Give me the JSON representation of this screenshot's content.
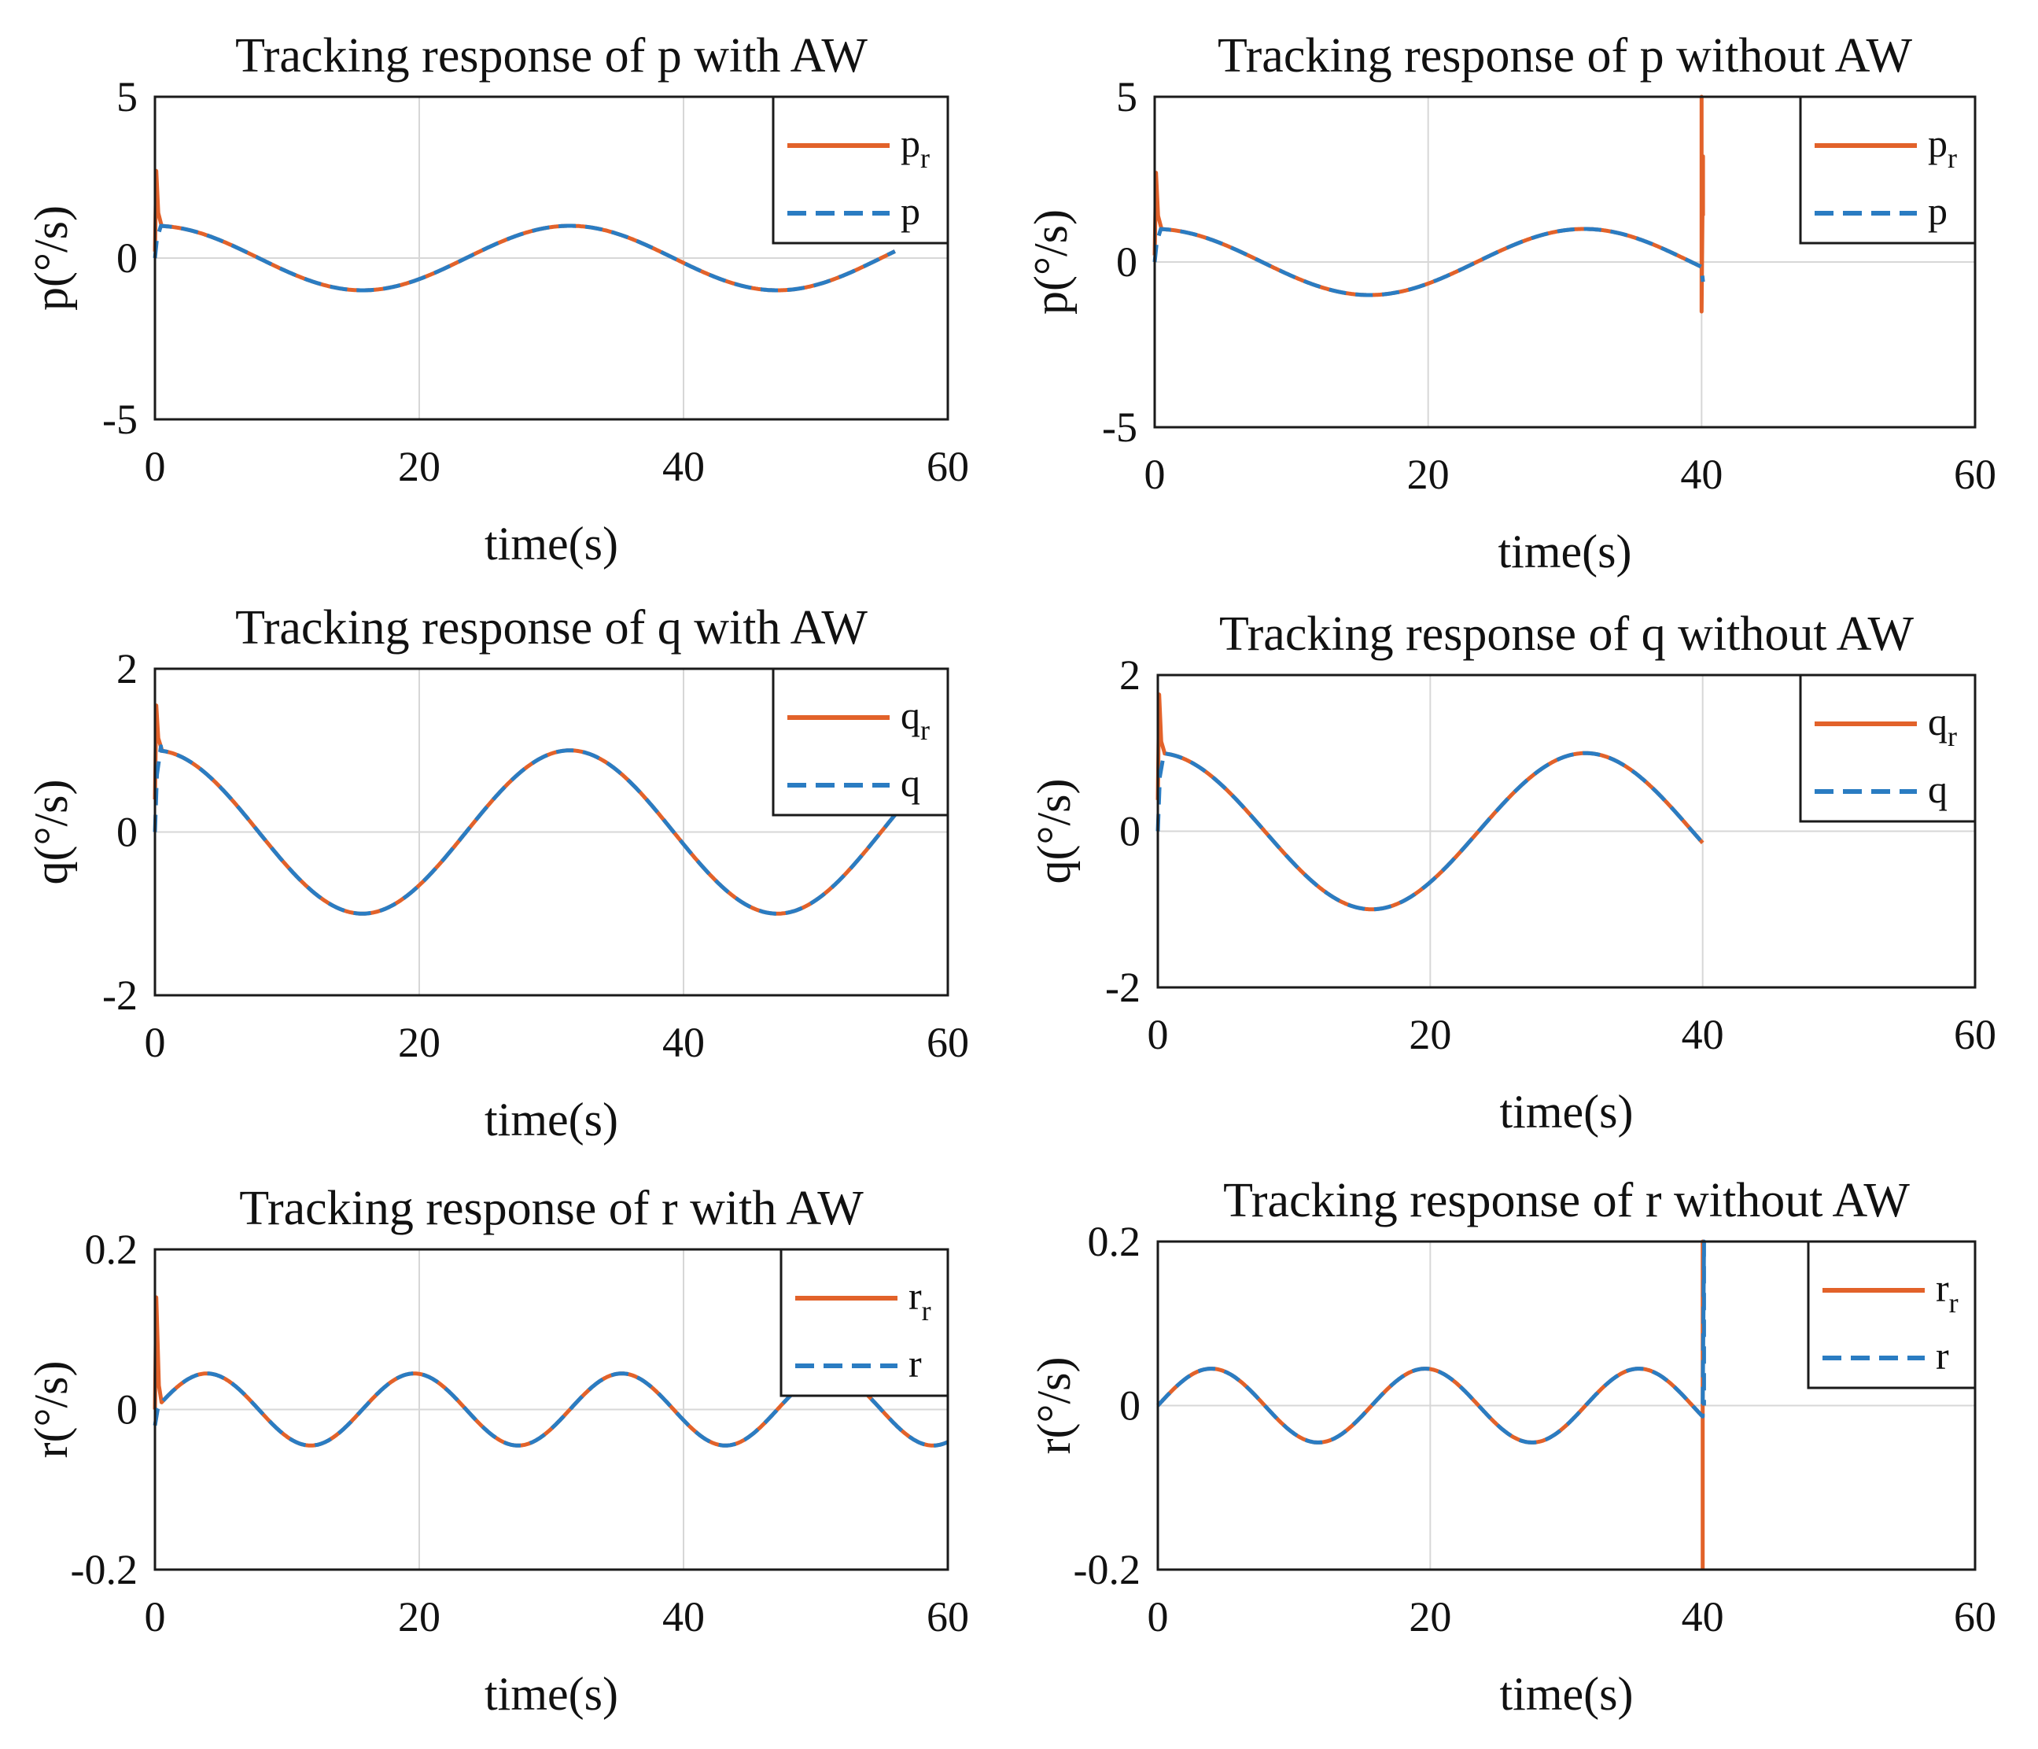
{
  "colors": {
    "reference": "#e2622a",
    "actual": "#2a7cc2"
  },
  "chart_data": [
    {
      "type": "line",
      "title": "Tracking response of p with AW",
      "xlabel": "time(s)",
      "ylabel": "p(°/s)",
      "xlim": [
        0,
        60
      ],
      "ylim": [
        -5,
        5
      ],
      "xticks": [
        0,
        20,
        40,
        60
      ],
      "yticks": [
        5,
        0,
        -5
      ],
      "ytick_labels": [
        "5",
        "0",
        "-5"
      ],
      "grid": true,
      "legend": {
        "position": "top-right",
        "entries": [
          {
            "base": "p",
            "sub": "r",
            "style": "solid",
            "color": "#e2622a"
          },
          {
            "base": "p",
            "sub": "",
            "style": "dashed",
            "color": "#2a7cc2"
          }
        ]
      },
      "signal": {
        "amplitude": 1.0,
        "period": 31.4,
        "phase_deg": 90,
        "t_end": 56
      },
      "series": [
        {
          "name": "p_r",
          "style": "solid",
          "color": "#e2622a",
          "transient": [
            [
              0,
              0.2
            ],
            [
              0.1,
              2.7
            ],
            [
              0.25,
              1.4
            ],
            [
              0.5,
              1.0
            ]
          ]
        },
        {
          "name": "p",
          "style": "dashed",
          "color": "#2a7cc2",
          "transient": [
            [
              0,
              0
            ],
            [
              0.15,
              0.6
            ],
            [
              0.45,
              1.0
            ]
          ]
        }
      ]
    },
    {
      "type": "line",
      "title": "Tracking response of p without AW",
      "xlabel": "time(s)",
      "ylabel": "p(°/s)",
      "xlim": [
        0,
        60
      ],
      "ylim": [
        -5,
        5
      ],
      "xticks": [
        0,
        20,
        40,
        60
      ],
      "yticks": [
        5,
        0,
        -5
      ],
      "ytick_labels": [
        "5",
        "0",
        "-5"
      ],
      "grid": true,
      "legend": {
        "position": "top-right",
        "entries": [
          {
            "base": "p",
            "sub": "r",
            "style": "solid",
            "color": "#e2622a"
          },
          {
            "base": "p",
            "sub": "",
            "style": "dashed",
            "color": "#2a7cc2"
          }
        ]
      },
      "signal": {
        "amplitude": 1.0,
        "period": 31.4,
        "phase_deg": 90,
        "t_end": 40
      },
      "series": [
        {
          "name": "p_r",
          "style": "solid",
          "color": "#e2622a",
          "transient": [
            [
              0,
              0.2
            ],
            [
              0.1,
              2.7
            ],
            [
              0.25,
              1.4
            ],
            [
              0.5,
              1.0
            ]
          ],
          "spike": [
            [
              40,
              -0.2
            ],
            [
              40,
              5.0
            ],
            [
              40,
              -1.5
            ],
            [
              40.1,
              3.2
            ],
            [
              40.1,
              1.4
            ]
          ]
        },
        {
          "name": "p",
          "style": "dashed",
          "color": "#2a7cc2",
          "transient": [
            [
              0,
              0
            ],
            [
              0.15,
              0.6
            ],
            [
              0.45,
              1.0
            ]
          ],
          "spike": [
            [
              40,
              -0.2
            ],
            [
              40.1,
              -0.6
            ]
          ]
        }
      ]
    },
    {
      "type": "line",
      "title": "Tracking response of q with AW",
      "xlabel": "time(s)",
      "ylabel": "q(°/s)",
      "xlim": [
        0,
        60
      ],
      "ylim": [
        -2,
        2
      ],
      "xticks": [
        0,
        20,
        40,
        60
      ],
      "yticks": [
        2,
        0,
        -2
      ],
      "ytick_labels": [
        "2",
        "0",
        "-2"
      ],
      "grid": true,
      "legend": {
        "position": "top-right",
        "entries": [
          {
            "base": "q",
            "sub": "r",
            "style": "solid",
            "color": "#e2622a"
          },
          {
            "base": "q",
            "sub": "",
            "style": "dashed",
            "color": "#2a7cc2"
          }
        ]
      },
      "signal": {
        "amplitude": 1.0,
        "period": 31.4,
        "phase_deg": 90,
        "t_end": 56
      },
      "series": [
        {
          "name": "q_r",
          "style": "solid",
          "color": "#e2622a",
          "transient": [
            [
              0,
              0.4
            ],
            [
              0.1,
              1.55
            ],
            [
              0.25,
              1.15
            ],
            [
              0.5,
              1.02
            ]
          ]
        },
        {
          "name": "q",
          "style": "dashed",
          "color": "#2a7cc2",
          "transient": [
            [
              0,
              0
            ],
            [
              0.15,
              0.7
            ],
            [
              0.45,
              1.05
            ]
          ]
        }
      ]
    },
    {
      "type": "line",
      "title": "Tracking response of q without AW",
      "xlabel": "time(s)",
      "ylabel": "q(°/s)",
      "xlim": [
        0,
        60
      ],
      "ylim": [
        -2,
        2
      ],
      "xticks": [
        0,
        20,
        40,
        60
      ],
      "yticks": [
        2,
        0,
        -2
      ],
      "ytick_labels": [
        "2",
        "0",
        "-2"
      ],
      "grid": true,
      "legend": {
        "position": "top-right",
        "entries": [
          {
            "base": "q",
            "sub": "r",
            "style": "solid",
            "color": "#e2622a"
          },
          {
            "base": "q",
            "sub": "",
            "style": "dashed",
            "color": "#2a7cc2"
          }
        ]
      },
      "signal": {
        "amplitude": 1.0,
        "period": 31.4,
        "phase_deg": 90,
        "t_end": 40
      },
      "series": [
        {
          "name": "q_r",
          "style": "solid",
          "color": "#e2622a",
          "transient": [
            [
              0,
              0.4
            ],
            [
              0.1,
              1.75
            ],
            [
              0.25,
              1.15
            ],
            [
              0.5,
              1.0
            ]
          ]
        },
        {
          "name": "q",
          "style": "dashed",
          "color": "#2a7cc2",
          "transient": [
            [
              0,
              0
            ],
            [
              0.15,
              0.7
            ],
            [
              0.45,
              1.0
            ]
          ]
        }
      ]
    },
    {
      "type": "line",
      "title": "Tracking response of r with AW",
      "xlabel": "time(s)",
      "ylabel": "r(°/s)",
      "xlim": [
        0,
        60
      ],
      "ylim": [
        -0.2,
        0.2
      ],
      "xticks": [
        0,
        20,
        40,
        60
      ],
      "yticks": [
        0.2,
        0,
        -0.2
      ],
      "ytick_labels": [
        "0.2",
        "0",
        "-0.2"
      ],
      "grid": true,
      "legend": {
        "position": "top-right",
        "entries": [
          {
            "base": "r",
            "sub": "r",
            "style": "solid",
            "color": "#e2622a"
          },
          {
            "base": "r",
            "sub": "",
            "style": "dashed",
            "color": "#2a7cc2"
          }
        ]
      },
      "signal": {
        "amplitude": 0.045,
        "period": 15.7,
        "phase_deg": 0,
        "t_end": 60
      },
      "series": [
        {
          "name": "r_r",
          "style": "solid",
          "color": "#e2622a",
          "transient": [
            [
              0,
              0.0
            ],
            [
              0.1,
              0.14
            ],
            [
              0.3,
              0.03
            ],
            [
              0.5,
              0.009
            ]
          ]
        },
        {
          "name": "r",
          "style": "dashed",
          "color": "#2a7cc2",
          "transient": [
            [
              0,
              -0.02
            ],
            [
              0.2,
              0.0
            ],
            [
              0.5,
              0.009
            ]
          ]
        }
      ]
    },
    {
      "type": "line",
      "title": "Tracking response of r without AW",
      "xlabel": "time(s)",
      "ylabel": "r(°/s)",
      "xlim": [
        0,
        60
      ],
      "ylim": [
        -0.2,
        0.2
      ],
      "xticks": [
        0,
        20,
        40,
        60
      ],
      "yticks": [
        0.2,
        0,
        -0.2
      ],
      "ytick_labels": [
        "0.2",
        "0",
        "-0.2"
      ],
      "grid": true,
      "legend": {
        "position": "top-right",
        "entries": [
          {
            "base": "r",
            "sub": "r",
            "style": "solid",
            "color": "#e2622a"
          },
          {
            "base": "r",
            "sub": "",
            "style": "dashed",
            "color": "#2a7cc2"
          }
        ]
      },
      "signal": {
        "amplitude": 0.045,
        "period": 15.7,
        "phase_deg": 0,
        "t_end": 40
      },
      "series": [
        {
          "name": "r_r",
          "style": "solid",
          "color": "#e2622a",
          "transient": [
            [
              0,
              0.0
            ]
          ],
          "spike": [
            [
              40,
              -0.003
            ],
            [
              40,
              0.2
            ],
            [
              40,
              -0.2
            ]
          ]
        },
        {
          "name": "r",
          "style": "dashed",
          "color": "#2a7cc2",
          "transient": [
            [
              0,
              0.0
            ]
          ],
          "spike": [
            [
              40,
              -0.003
            ],
            [
              40.1,
              0.2
            ],
            [
              40.1,
              0.0
            ]
          ]
        }
      ]
    }
  ]
}
